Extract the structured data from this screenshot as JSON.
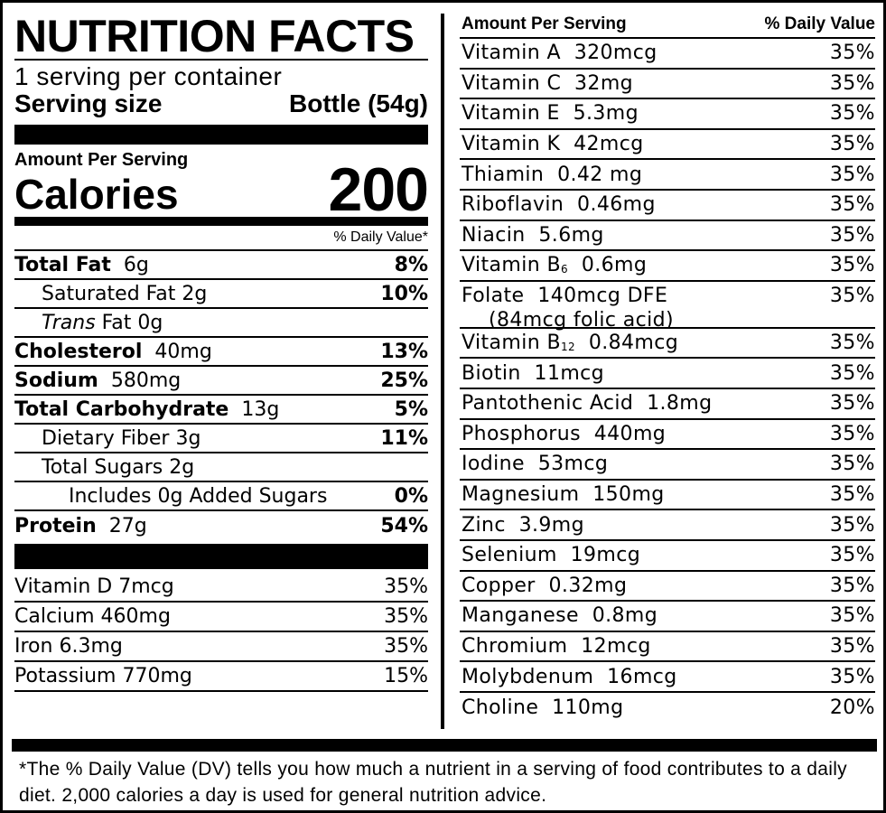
{
  "title": "NUTRITION FACTS",
  "servings_per_container": "1 serving per container",
  "serving_size_label": "Serving size",
  "serving_size_value": "Bottle (54g)",
  "amount_per_serving": "Amount Per Serving",
  "calories_label": "Calories",
  "calories_value": "200",
  "daily_value_header": "% Daily Value*",
  "nutrients": [
    {
      "name": "Total Fat",
      "amount": "6g",
      "pct": "8%"
    },
    {
      "name": "Saturated Fat",
      "amount": "2g",
      "pct": "10%"
    },
    {
      "name": "Trans",
      "name_suffix": "Fat",
      "amount": "0g",
      "pct": ""
    },
    {
      "name": "Cholesterol",
      "amount": "40mg",
      "pct": "13%"
    },
    {
      "name": "Sodium",
      "amount": "580mg",
      "pct": "25%"
    },
    {
      "name": "Total Carbohydrate",
      "amount": "13g",
      "pct": "5%"
    },
    {
      "name": "Dietary Fiber",
      "amount": "3g",
      "pct": "11%"
    },
    {
      "name": "Total Sugars",
      "amount": "2g",
      "pct": ""
    },
    {
      "name": "Includes 0g Added Sugars",
      "amount": "",
      "pct": "0%"
    },
    {
      "name": "Protein",
      "amount": "27g",
      "pct": "54%"
    }
  ],
  "minerals_left": [
    {
      "name": "Vitamin D",
      "amount": "7mcg",
      "pct": "35%"
    },
    {
      "name": "Calcium",
      "amount": "460mg",
      "pct": "35%"
    },
    {
      "name": "Iron",
      "amount": "6.3mg",
      "pct": "35%"
    },
    {
      "name": "Potassium",
      "amount": "770mg",
      "pct": "15%"
    }
  ],
  "right_header": {
    "left": "Amount Per Serving",
    "right": "% Daily Value"
  },
  "vitamins": [
    {
      "name": "Vitamin A",
      "amount": "320mcg",
      "pct": "35%"
    },
    {
      "name": "Vitamin C",
      "amount": "32mg",
      "pct": "35%"
    },
    {
      "name": "Vitamin E",
      "amount": "5.3mg",
      "pct": "35%"
    },
    {
      "name": "Vitamin K",
      "amount": "42mcg",
      "pct": "35%"
    },
    {
      "name": "Thiamin",
      "amount": "0.42 mg",
      "pct": "35%"
    },
    {
      "name": "Riboflavin",
      "amount": "0.46mg",
      "pct": "35%"
    },
    {
      "name": "Niacin",
      "amount": "5.6mg",
      "pct": "35%"
    },
    {
      "name": "Vitamin B",
      "sub": "6",
      "amount": "0.6mg",
      "pct": "35%"
    },
    {
      "name": "Folate",
      "amount": "140mcg DFE",
      "note": "(84mcg folic acid)",
      "pct": "35%"
    },
    {
      "name": "Vitamin B",
      "sub": "12",
      "amount": "0.84mcg",
      "pct": "35%"
    },
    {
      "name": "Biotin",
      "amount": "11mcg",
      "pct": "35%"
    },
    {
      "name": "Pantothenic Acid",
      "amount": "1.8mg",
      "pct": "35%"
    },
    {
      "name": "Phosphorus",
      "amount": "440mg",
      "pct": "35%"
    },
    {
      "name": "Iodine",
      "amount": "53mcg",
      "pct": "35%"
    },
    {
      "name": "Magnesium",
      "amount": "150mg",
      "pct": "35%"
    },
    {
      "name": "Zinc",
      "amount": "3.9mg",
      "pct": "35%"
    },
    {
      "name": "Selenium",
      "amount": "19mcg",
      "pct": "35%"
    },
    {
      "name": "Copper",
      "amount": "0.32mg",
      "pct": "35%"
    },
    {
      "name": "Manganese",
      "amount": "0.8mg",
      "pct": "35%"
    },
    {
      "name": "Chromium",
      "amount": "12mcg",
      "pct": "35%"
    },
    {
      "name": "Molybdenum",
      "amount": "16mcg",
      "pct": "35%"
    },
    {
      "name": "Choline",
      "amount": "110mg",
      "pct": "20%"
    }
  ],
  "footnote": "*The % Daily Value (DV) tells you how much a nutrient in a serving of food contributes to a daily diet. 2,000 calories a day is used for general nutrition advice."
}
